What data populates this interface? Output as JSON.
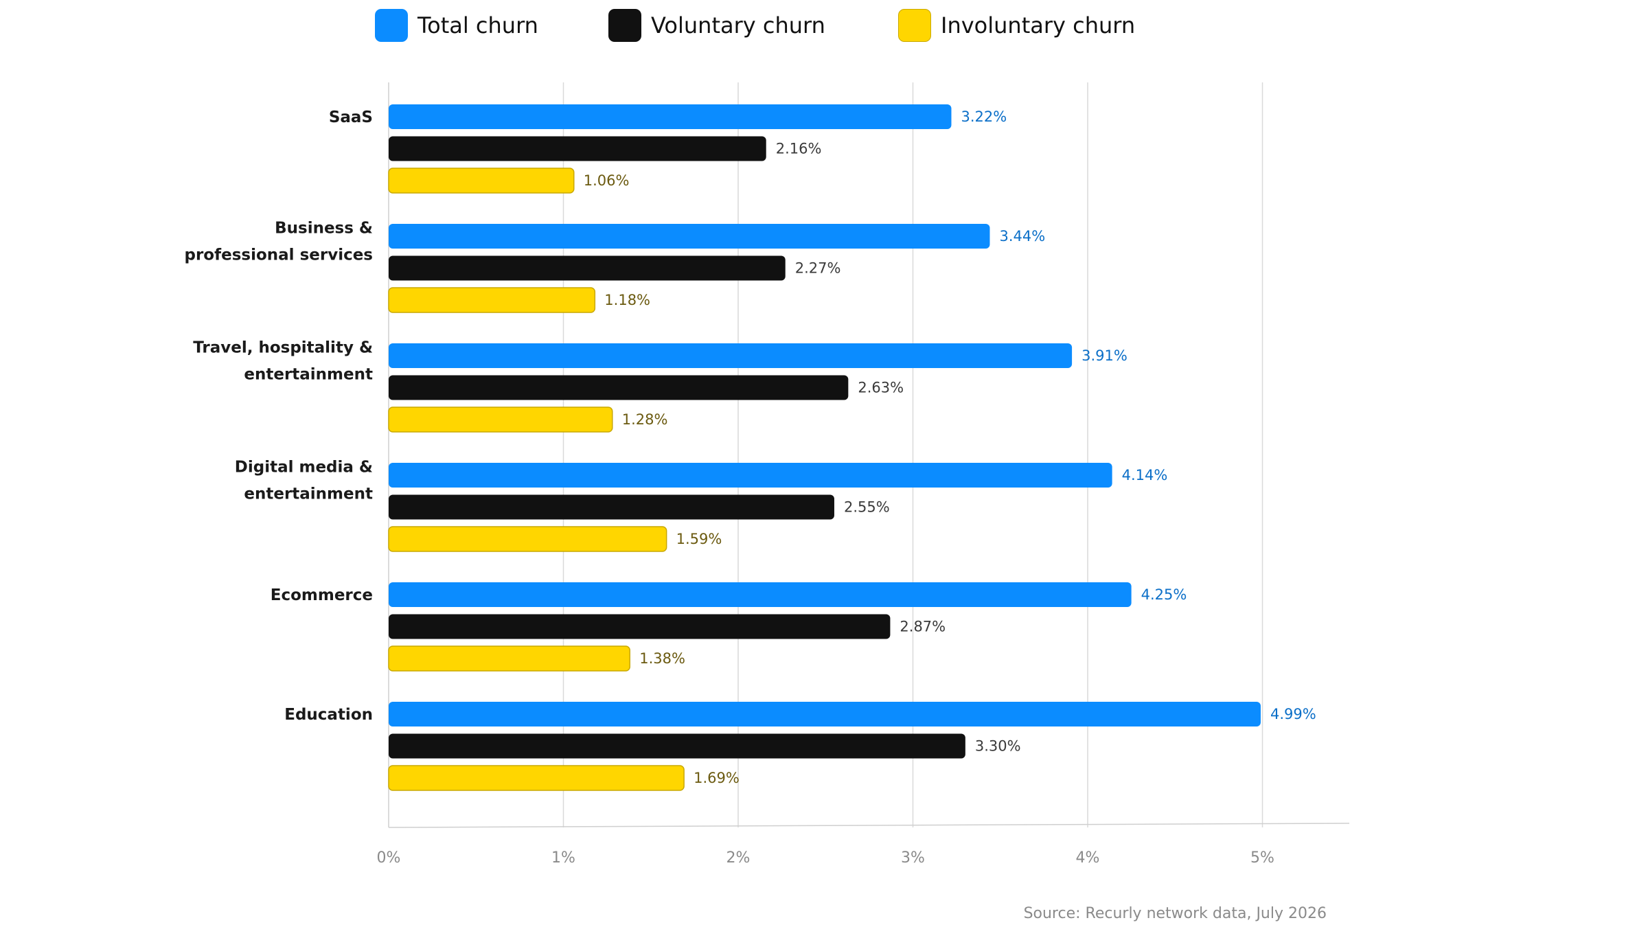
{
  "legend": [
    {
      "label": "Total churn",
      "color": "#0B8CFF"
    },
    {
      "label": "Voluntary churn",
      "color": "#111111"
    },
    {
      "label": "Involuntary churn",
      "color": "#FFD600"
    }
  ],
  "source": "Source: Recurly network data, July 2026",
  "chart_data": {
    "type": "bar",
    "orientation": "horizontal",
    "categories": [
      [
        "SaaS"
      ],
      [
        "Business &",
        "professional services"
      ],
      [
        "Travel, hospitality &",
        "entertainment"
      ],
      [
        "Digital media &",
        "entertainment"
      ],
      [
        "Ecommerce"
      ],
      [
        "Education"
      ]
    ],
    "series": [
      {
        "name": "Total churn",
        "color": "#0B8CFF",
        "label_color": "#0B6FC8",
        "values": [
          3.22,
          3.44,
          3.91,
          4.14,
          4.25,
          4.99
        ],
        "labels": [
          "3.22%",
          "3.44%",
          "3.91%",
          "4.14%",
          "4.25%",
          "4.99%"
        ]
      },
      {
        "name": "Voluntary churn",
        "color": "#111111",
        "label_color": "#3a3a3a",
        "values": [
          2.16,
          2.27,
          2.63,
          2.55,
          2.87,
          3.3
        ],
        "labels": [
          "2.16%",
          "2.27%",
          "2.63%",
          "2.55%",
          "2.87%",
          "3.30%"
        ]
      },
      {
        "name": "Involuntary churn",
        "color": "#FFD600",
        "label_color": "#6b5a10",
        "values": [
          1.06,
          1.18,
          1.28,
          1.59,
          1.38,
          1.69
        ],
        "labels": [
          "1.06%",
          "1.18%",
          "1.28%",
          "1.59%",
          "1.38%",
          "1.69%"
        ]
      }
    ],
    "xlim": [
      0,
      5.5
    ],
    "xticks": [
      0,
      1,
      2,
      3,
      4,
      5
    ],
    "xtick_labels": [
      "0%",
      "1%",
      "2%",
      "3%",
      "4%",
      "5%"
    ],
    "grid": true,
    "legend_position": "top"
  }
}
